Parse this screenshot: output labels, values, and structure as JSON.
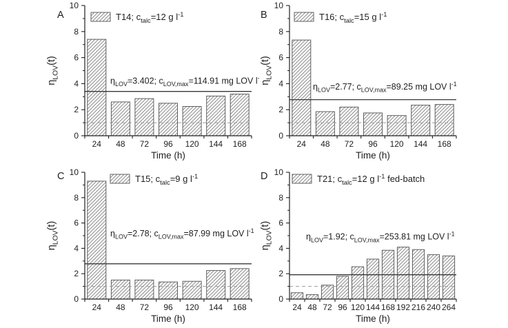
{
  "figure": {
    "description": "Four-panel bar chart figure of lovastatin production efficiency over time",
    "xlabel": "Time (h)",
    "ylabel": "η~{LOV}(t)"
  },
  "colors": {
    "background": "#ffffff",
    "bar_fill": "#ffffff",
    "bar_edge": "#5f5f5f",
    "hatch": "#8d8d8d",
    "axis": "#1f1f1f",
    "text": "#1f1f1f",
    "ref_line_solid": "#383838",
    "ref_line_dashed": "#9a9a9a"
  },
  "chart_data": [
    {
      "type": "bar",
      "panel_label": "A",
      "legend": "T14; c~{talc}=12 g l^{-1}",
      "annotation": "η~{LOV}=3.402; c~{LOV,max}=114.91 mg LOV l^{-1}",
      "eta_lov": 3.402,
      "c_lov_max": 114.91,
      "categories": [
        "24",
        "48",
        "72",
        "96",
        "120",
        "144",
        "168"
      ],
      "values": [
        7.4,
        2.6,
        2.85,
        2.5,
        2.25,
        3.05,
        3.2
      ],
      "solid_line_y": 3.402,
      "dashed_line_y": 1.0,
      "xlabel": "Time (h)",
      "ylabel": "η~{LOV}(t)",
      "ylim": [
        0,
        10
      ],
      "yticks": [
        0,
        2,
        4,
        6,
        8,
        10
      ],
      "grid": false,
      "legend_position": "top-left-inside"
    },
    {
      "type": "bar",
      "panel_label": "B",
      "legend": "T16; c~{talc}=15 g l^{-1}",
      "annotation": "η~{LOV}=2.77; c~{LOV,max}=89.25 mg LOV l^{-1}",
      "eta_lov": 2.77,
      "c_lov_max": 89.25,
      "categories": [
        "24",
        "48",
        "72",
        "96",
        "120",
        "144",
        "168"
      ],
      "values": [
        7.35,
        1.85,
        2.2,
        1.75,
        1.55,
        2.35,
        2.4
      ],
      "solid_line_y": 2.77,
      "dashed_line_y": 1.0,
      "xlabel": "Time (h)",
      "ylabel": "η~{LOV}(t)",
      "ylim": [
        0,
        10
      ],
      "yticks": [
        0,
        2,
        4,
        6,
        8,
        10
      ],
      "grid": false,
      "legend_position": "top-left-inside"
    },
    {
      "type": "bar",
      "panel_label": "C",
      "legend": "T15; c~{talc}=9 g l^{-1}",
      "annotation": "η~{LOV}=2.78; c~{LOV,max}=87.99 mg LOV l^{-1}",
      "eta_lov": 2.78,
      "c_lov_max": 87.99,
      "categories": [
        "24",
        "48",
        "72",
        "96",
        "120",
        "144",
        "168"
      ],
      "values": [
        9.3,
        1.5,
        1.5,
        1.35,
        1.4,
        2.25,
        2.4
      ],
      "solid_line_y": 2.78,
      "dashed_line_y": 1.0,
      "xlabel": "Time (h)",
      "ylabel": "η~{LOV}(t)",
      "ylim": [
        0,
        10
      ],
      "yticks": [
        0,
        2,
        4,
        6,
        8,
        10
      ],
      "grid": false,
      "legend_position": "top-inside-right-of-first-bar"
    },
    {
      "type": "bar",
      "panel_label": "D",
      "legend": "T21; c~{talc}=12 g l^{-1} fed-batch",
      "annotation": "η~{LOV}=1.92; c~{LOV,max}=253.81 mg LOV l^{-1}",
      "eta_lov": 1.92,
      "c_lov_max": 253.81,
      "categories": [
        "24",
        "48",
        "72",
        "96",
        "120",
        "144",
        "168",
        "192",
        "216",
        "240",
        "264"
      ],
      "values": [
        0.5,
        0.35,
        1.1,
        1.8,
        2.55,
        3.15,
        3.85,
        4.1,
        3.9,
        3.5,
        3.4
      ],
      "solid_line_y": 1.92,
      "dashed_line_y": 1.0,
      "xlabel": "Time (h)",
      "ylabel": "η~{LOV}(t)",
      "ylim": [
        0,
        10
      ],
      "yticks": [
        0,
        2,
        4,
        6,
        8,
        10
      ],
      "grid": false,
      "legend_position": "top-left-inside"
    }
  ]
}
